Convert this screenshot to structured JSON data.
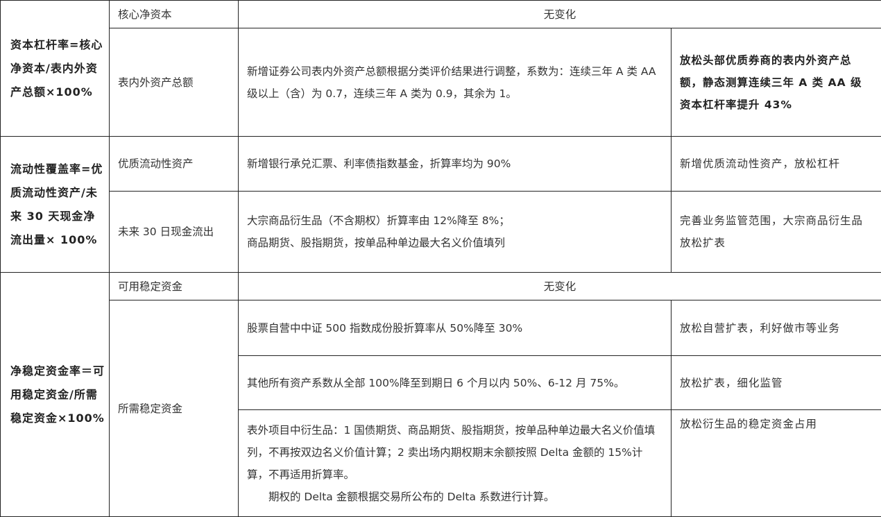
{
  "rows": {
    "leverage": {
      "metric": "资本杠杆率=核心净资本/表内外资产总额×100%",
      "items": [
        {
          "name": "核心净资本",
          "change": "无变化"
        },
        {
          "name": "表内外资产总额",
          "change": "新增证券公司表内外资产总额根据分类评价结果进行调整，系数为：连续三年 A 类 AA 级以上（含）为 0.7，连续三年 A 类为 0.9，其余为 1。",
          "impact": "放松头部优质券商的表内外资产总额，静态测算连续三年 A 类 AA 级资本杠杆率提升 43%"
        }
      ]
    },
    "liquidity": {
      "metric": "流动性覆盖率=优质流动性资产/未来 30 天现金净流出量× 100%",
      "items": [
        {
          "name": "优质流动性资产",
          "change": "新增银行承兑汇票、利率债指数基金，折算率均为 90%",
          "impact": "新增优质流动性资产，放松杠杆"
        },
        {
          "name": "未来 30 日现金流出",
          "change_lines": [
            "大宗商品衍生品（不含期权）折算率由 12%降至 8%；",
            "商品期货、股指期货，按单品种单边最大名义价值填列"
          ],
          "impact": "完善业务监管范围，大宗商品衍生品放松扩表"
        }
      ]
    },
    "nsfr": {
      "metric": "净稳定资金率＝可用稳定资金/所需稳定资金×100%",
      "items": [
        {
          "name": "可用稳定资金",
          "change": "无变化"
        },
        {
          "name": "所需稳定资金",
          "sub": [
            {
              "change": "股票自营中中证 500 指数成份股折算率从 50%降至 30%",
              "impact": "放松自营扩表，利好做市等业务"
            },
            {
              "change": "其他所有资产系数从全部 100%降至到期日 6 个月以内 50%、6-12 月 75%。",
              "impact": "放松扩表，细化监管"
            },
            {
              "change": "表外项目中衍生品：1 国债期货、商品期货、股指期货，按单品种单边最大名义价值填列，不再按双边名义价值计算；2 卖出场内期权期末余额按照 Delta 金额的 15%计算，不再适用折算率。",
              "change_note": "期权的 Delta 金额根据交易所公布的 Delta 系数进行计算。",
              "impact": "放松衍生品的稳定资金占用"
            }
          ]
        }
      ]
    }
  }
}
